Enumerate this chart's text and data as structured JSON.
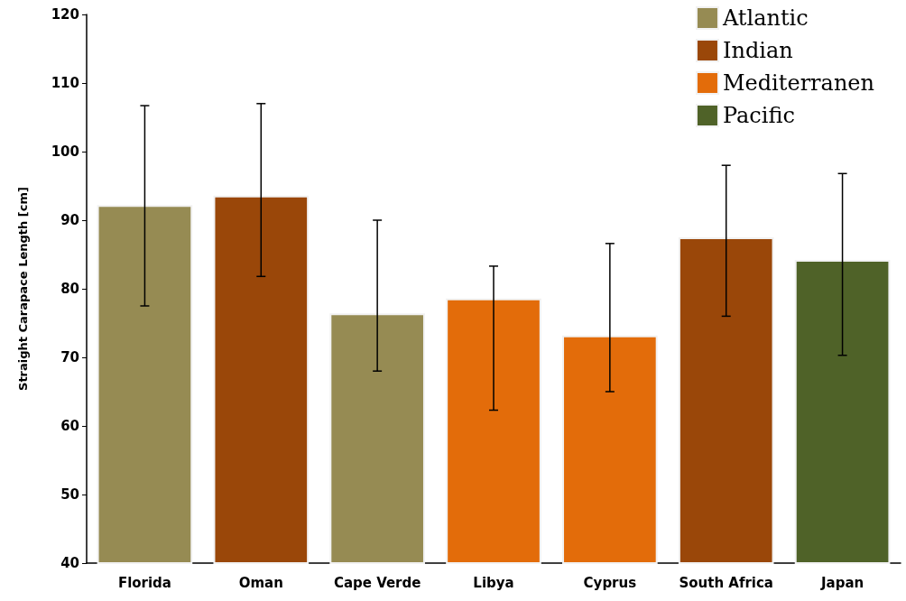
{
  "chart_data": {
    "type": "bar",
    "ylabel": "Straight Carapace Length [cm]",
    "categories": [
      "Florida",
      "Oman",
      "Cape Verde",
      "Libya",
      "Cyprus",
      "South Africa",
      "Japan"
    ],
    "series": [
      {
        "name": "Atlantic",
        "color": "#968b53",
        "values": [
          92.2,
          null,
          76.4,
          null,
          null,
          null,
          null
        ],
        "errors": [
          [
            77.5,
            106.7
          ],
          null,
          [
            68,
            90
          ],
          null,
          null,
          null,
          null
        ]
      },
      {
        "name": "Indian",
        "color": "#9a4709",
        "values": [
          null,
          93.6,
          null,
          null,
          null,
          87.5,
          null
        ],
        "errors": [
          null,
          [
            81.8,
            107
          ],
          null,
          null,
          null,
          [
            76,
            98
          ],
          null
        ]
      },
      {
        "name": "Mediterranen",
        "color": "#e36c0a",
        "values": [
          null,
          null,
          null,
          78.6,
          73.2,
          null,
          null
        ],
        "errors": [
          null,
          null,
          null,
          [
            62.3,
            83.3
          ],
          [
            65,
            86.6
          ],
          null,
          null
        ]
      },
      {
        "name": "Pacific",
        "color": "#4f6228",
        "values": [
          null,
          null,
          null,
          null,
          null,
          null,
          84.2
        ],
        "errors": [
          null,
          null,
          null,
          null,
          null,
          null,
          [
            70.3,
            96.8
          ]
        ]
      }
    ],
    "ylim": [
      40,
      120
    ],
    "yticks": [
      40,
      50,
      60,
      70,
      80,
      90,
      100,
      110,
      120
    ],
    "grid": false,
    "legend": "top right"
  }
}
